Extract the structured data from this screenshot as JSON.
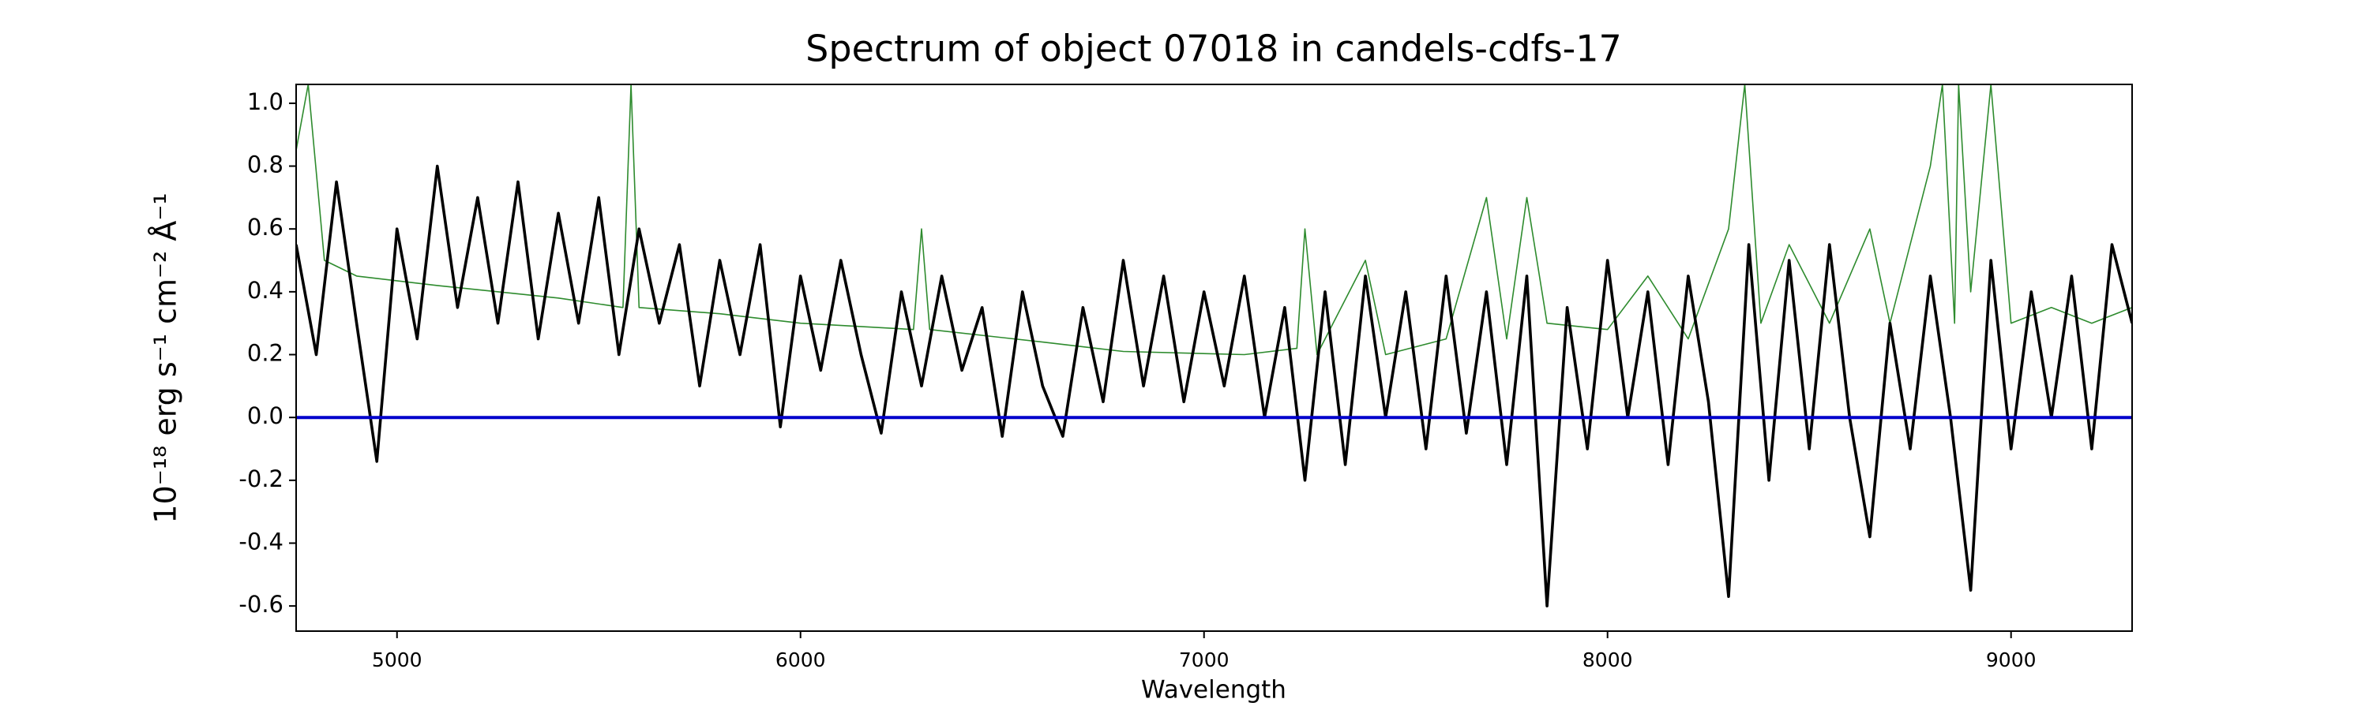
{
  "chart_data": {
    "type": "line",
    "title": "Spectrum of object 07018 in candels-cdfs-17",
    "xlabel": "Wavelength",
    "ylabel": "10⁻¹⁸ erg s⁻¹ cm⁻² Å⁻¹",
    "xlim": [
      4750,
      9300
    ],
    "ylim": [
      -0.68,
      1.06
    ],
    "xticks": [
      5000,
      6000,
      7000,
      8000,
      9000
    ],
    "yticks": [
      -0.6,
      -0.4,
      -0.2,
      {
        "value": 0,
        "label": "0.0"
      },
      0.2,
      0.4,
      0.6,
      0.8,
      {
        "value": 1,
        "label": "1.0"
      }
    ],
    "grid": false,
    "series": [
      {
        "color": "#2e8b2e",
        "width": 1.6,
        "x": [
          4750,
          4780,
          4820,
          4900,
          5100,
          5400,
          5560,
          5580,
          5600,
          5800,
          6000,
          6280,
          6300,
          6320,
          6600,
          6800,
          7100,
          7230,
          7250,
          7280,
          7400,
          7450,
          7600,
          7700,
          7750,
          7800,
          7850,
          8000,
          8100,
          8200,
          8300,
          8340,
          8380,
          8450,
          8550,
          8650,
          8700,
          8800,
          8830,
          8860,
          8870,
          8900,
          8950,
          9000,
          9100,
          9200,
          9300
        ],
        "values": [
          0.85,
          1.06,
          0.5,
          0.45,
          0.42,
          0.38,
          0.35,
          1.06,
          0.35,
          0.33,
          0.3,
          0.28,
          0.6,
          0.28,
          0.24,
          0.21,
          0.2,
          0.22,
          0.6,
          0.2,
          0.5,
          0.2,
          0.25,
          0.7,
          0.25,
          0.7,
          0.3,
          0.28,
          0.45,
          0.25,
          0.6,
          1.06,
          0.3,
          0.55,
          0.3,
          0.6,
          0.3,
          0.8,
          1.06,
          0.3,
          1.06,
          0.4,
          1.06,
          0.3,
          0.35,
          0.3,
          0.35
        ]
      },
      {
        "color": "#000000",
        "width": 3.6,
        "x": [
          4750,
          4800,
          4850,
          4900,
          4950,
          5000,
          5050,
          5100,
          5150,
          5200,
          5250,
          5300,
          5350,
          5400,
          5450,
          5500,
          5550,
          5600,
          5650,
          5700,
          5750,
          5800,
          5850,
          5900,
          5950,
          6000,
          6050,
          6100,
          6150,
          6200,
          6250,
          6300,
          6350,
          6400,
          6450,
          6500,
          6550,
          6600,
          6650,
          6700,
          6750,
          6800,
          6850,
          6900,
          6950,
          7000,
          7050,
          7100,
          7150,
          7200,
          7250,
          7300,
          7350,
          7400,
          7450,
          7500,
          7550,
          7600,
          7650,
          7700,
          7750,
          7800,
          7850,
          7900,
          7950,
          8000,
          8050,
          8100,
          8150,
          8200,
          8250,
          8300,
          8350,
          8400,
          8450,
          8500,
          8550,
          8600,
          8650,
          8700,
          8750,
          8800,
          8850,
          8900,
          8950,
          9000,
          9050,
          9100,
          9150,
          9200,
          9250,
          9300
        ],
        "values": [
          0.55,
          0.2,
          0.75,
          0.3,
          -0.14,
          0.6,
          0.25,
          0.8,
          0.35,
          0.7,
          0.3,
          0.75,
          0.25,
          0.65,
          0.3,
          0.7,
          0.2,
          0.6,
          0.3,
          0.55,
          0.1,
          0.5,
          0.2,
          0.55,
          -0.03,
          0.45,
          0.15,
          0.5,
          0.2,
          -0.05,
          0.4,
          0.1,
          0.45,
          0.15,
          0.35,
          -0.06,
          0.4,
          0.1,
          -0.06,
          0.35,
          0.05,
          0.5,
          0.1,
          0.45,
          0.05,
          0.4,
          0.1,
          0.45,
          0.0,
          0.35,
          -0.2,
          0.4,
          -0.15,
          0.45,
          0.0,
          0.4,
          -0.1,
          0.45,
          -0.05,
          0.4,
          -0.15,
          0.45,
          -0.6,
          0.35,
          -0.1,
          0.5,
          0.0,
          0.4,
          -0.15,
          0.45,
          0.05,
          -0.57,
          0.55,
          -0.2,
          0.5,
          -0.1,
          0.55,
          0.0,
          -0.38,
          0.3,
          -0.1,
          0.45,
          0.0,
          -0.55,
          0.5,
          -0.1,
          0.4,
          0.0,
          0.45,
          -0.1,
          0.55,
          0.3
        ]
      },
      {
        "color": "#0000cc",
        "width": 4,
        "x": [
          4750,
          9300
        ],
        "values": [
          0,
          0
        ]
      }
    ]
  }
}
